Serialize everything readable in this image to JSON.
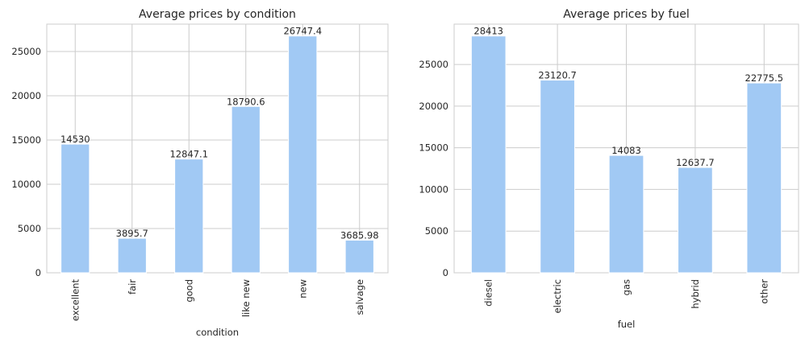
{
  "colors": {
    "bar": "#a1c9f4",
    "grid": "#cccccc",
    "frame": "#cccccc",
    "text": "#262626",
    "background": "#ffffff"
  },
  "chart_data": [
    {
      "type": "bar",
      "title": "Average prices by condition",
      "xlabel": "condition",
      "ylabel": "",
      "categories": [
        "excellent",
        "fair",
        "good",
        "like new",
        "new",
        "salvage"
      ],
      "values": [
        14530,
        3895.7,
        12847.1,
        18790.6,
        26747.4,
        3685.98
      ],
      "data_labels": [
        "14530",
        "3895.7",
        "12847.1",
        "18790.6",
        "26747.4",
        "3685.98"
      ],
      "yticks": [
        0,
        5000,
        10000,
        15000,
        20000,
        25000
      ],
      "ylim": [
        0,
        28084.77
      ],
      "grid": true,
      "legend": "none"
    },
    {
      "type": "bar",
      "title": "Average prices by fuel",
      "xlabel": "fuel",
      "ylabel": "",
      "categories": [
        "diesel",
        "electric",
        "gas",
        "hybrid",
        "other"
      ],
      "values": [
        28413,
        23120.7,
        14083,
        12637.7,
        22775.5
      ],
      "data_labels": [
        "28413",
        "23120.7",
        "14083",
        "12637.7",
        "22775.5"
      ],
      "yticks": [
        0,
        5000,
        10000,
        15000,
        20000,
        25000
      ],
      "ylim": [
        0,
        29833.65
      ],
      "grid": true,
      "legend": "none"
    }
  ]
}
